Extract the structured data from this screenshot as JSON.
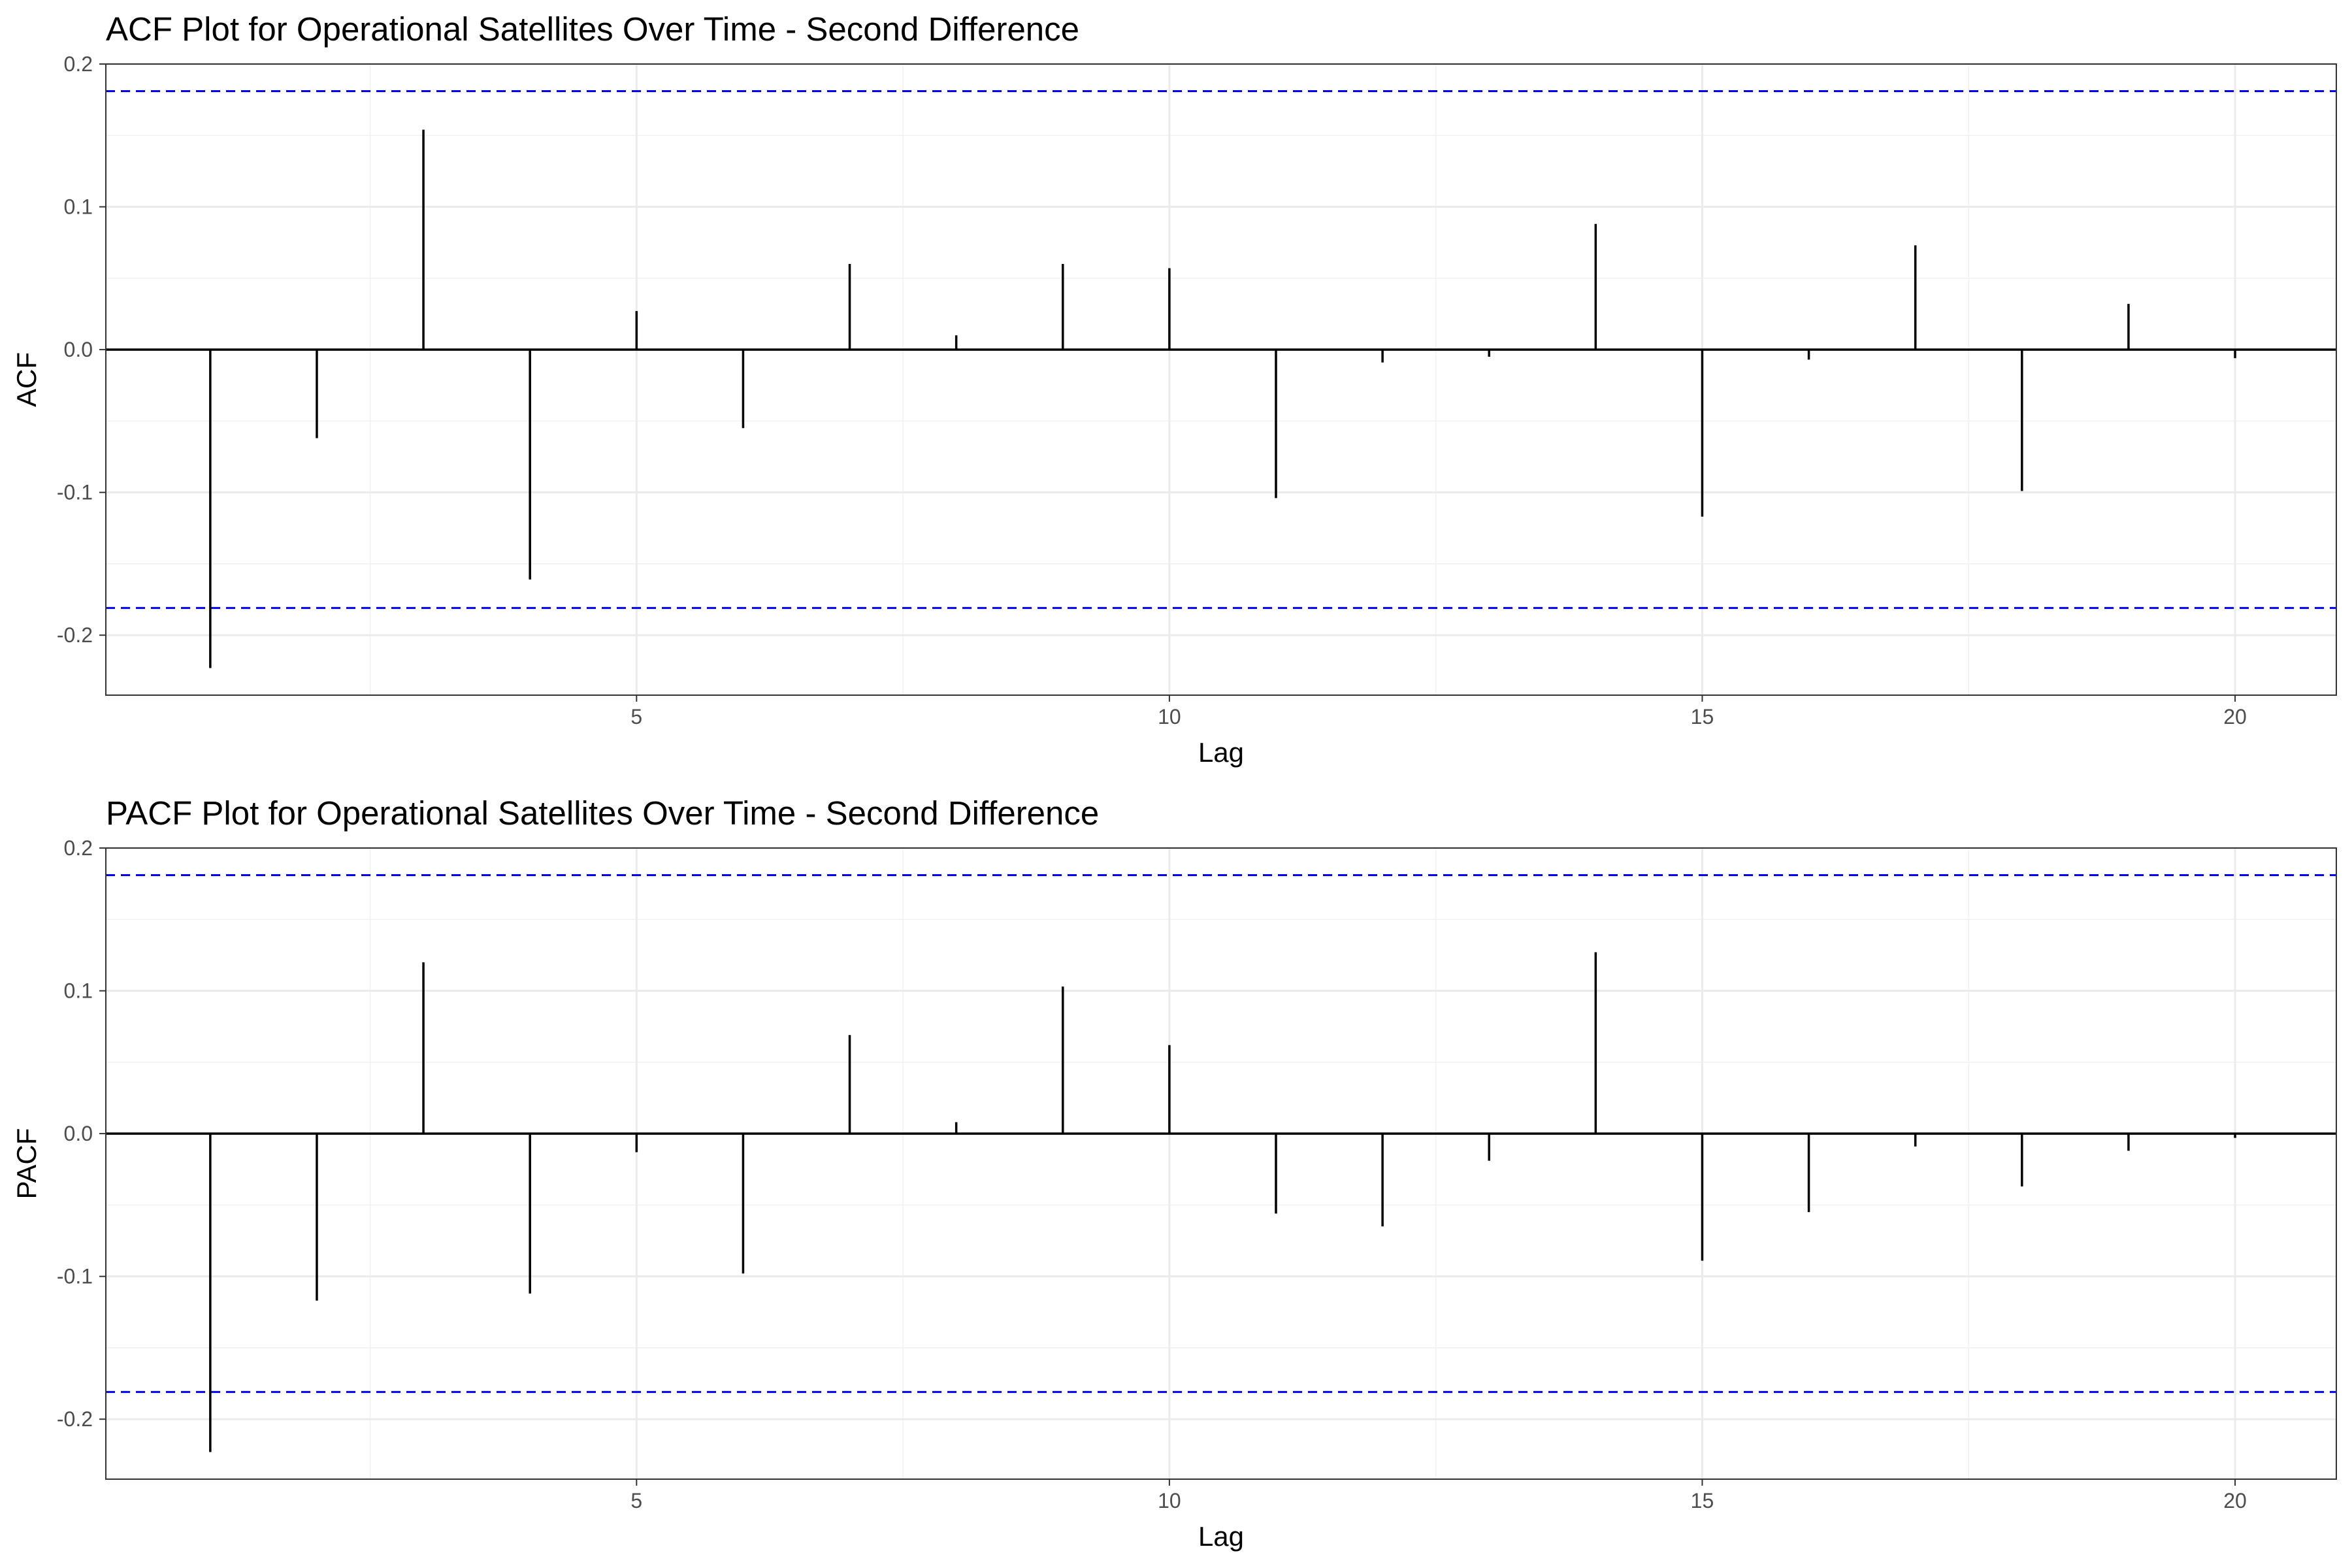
{
  "chart_data": [
    {
      "type": "bar",
      "title": "ACF Plot for Operational Satellites Over Time - Second Difference",
      "xlabel": "Lag",
      "ylabel": "ACF",
      "x": [
        1,
        2,
        3,
        4,
        5,
        6,
        7,
        8,
        9,
        10,
        11,
        12,
        13,
        14,
        15,
        16,
        17,
        18,
        19,
        20
      ],
      "values": [
        -0.223,
        -0.062,
        0.154,
        -0.161,
        0.027,
        -0.055,
        0.06,
        0.01,
        0.06,
        0.057,
        -0.104,
        -0.009,
        -0.005,
        0.088,
        -0.117,
        -0.007,
        0.073,
        -0.099,
        0.032,
        -0.006
      ],
      "xlim": [
        0.02,
        20.95
      ],
      "ylim": [
        -0.242,
        0.2
      ],
      "xticks": [
        5,
        10,
        15,
        20
      ],
      "xtick_labels": [
        "5",
        "10",
        "15",
        "20"
      ],
      "yticks": [
        -0.2,
        -0.1,
        0.0,
        0.1,
        0.2
      ],
      "ytick_labels": [
        "-0.2",
        "-0.1",
        "0.0",
        "0.1",
        "0.2"
      ],
      "confidence_bound": 0.181,
      "bound_color": "#0000ff",
      "bar_color": "#000000",
      "grid": true
    },
    {
      "type": "bar",
      "title": "PACF Plot for Operational Satellites Over Time - Second Difference",
      "xlabel": "Lag",
      "ylabel": "PACF",
      "x": [
        1,
        2,
        3,
        4,
        5,
        6,
        7,
        8,
        9,
        10,
        11,
        12,
        13,
        14,
        15,
        16,
        17,
        18,
        19,
        20
      ],
      "values": [
        -0.223,
        -0.117,
        0.12,
        -0.112,
        -0.013,
        -0.098,
        0.069,
        0.008,
        0.103,
        0.062,
        -0.056,
        -0.065,
        -0.019,
        0.127,
        -0.089,
        -0.055,
        -0.009,
        -0.037,
        -0.012,
        -0.003
      ],
      "xlim": [
        0.02,
        20.95
      ],
      "ylim": [
        -0.242,
        0.2
      ],
      "xticks": [
        5,
        10,
        15,
        20
      ],
      "xtick_labels": [
        "5",
        "10",
        "15",
        "20"
      ],
      "yticks": [
        -0.2,
        -0.1,
        0.0,
        0.1,
        0.2
      ],
      "ytick_labels": [
        "-0.2",
        "-0.1",
        "0.0",
        "0.1",
        "0.2"
      ],
      "confidence_bound": 0.181,
      "bound_color": "#0000ff",
      "bar_color": "#000000",
      "grid": true
    }
  ]
}
